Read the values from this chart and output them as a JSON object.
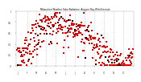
{
  "title": "Milwaukee Weather Solar Radiation  Avg per Day W/m2/minute",
  "bg_color": "#ffffff",
  "plot_bg_color": "#ffffff",
  "text_color": "#000000",
  "dot_color": "#dd0000",
  "black_dot_color": "#000000",
  "grid_color": "#aaaaaa",
  "ylim": [
    0,
    1.0
  ],
  "n_points": 365,
  "seed": 42,
  "vline_positions": [
    31,
    59,
    90,
    120,
    151,
    181,
    212,
    243,
    273,
    304,
    334
  ],
  "month_labels": [
    "J",
    "F",
    "M",
    "A",
    "M",
    "J",
    "J",
    "A",
    "S",
    "O",
    "N",
    "D",
    ""
  ],
  "month_ticks": [
    0,
    31,
    59,
    90,
    120,
    151,
    181,
    212,
    243,
    273,
    304,
    334,
    364
  ],
  "ytick_labels": [
    "0",
    "0.2",
    "0.4",
    "0.6",
    "0.8",
    "1"
  ],
  "ytick_vals": [
    0.0,
    0.2,
    0.4,
    0.6,
    0.8,
    1.0
  ]
}
